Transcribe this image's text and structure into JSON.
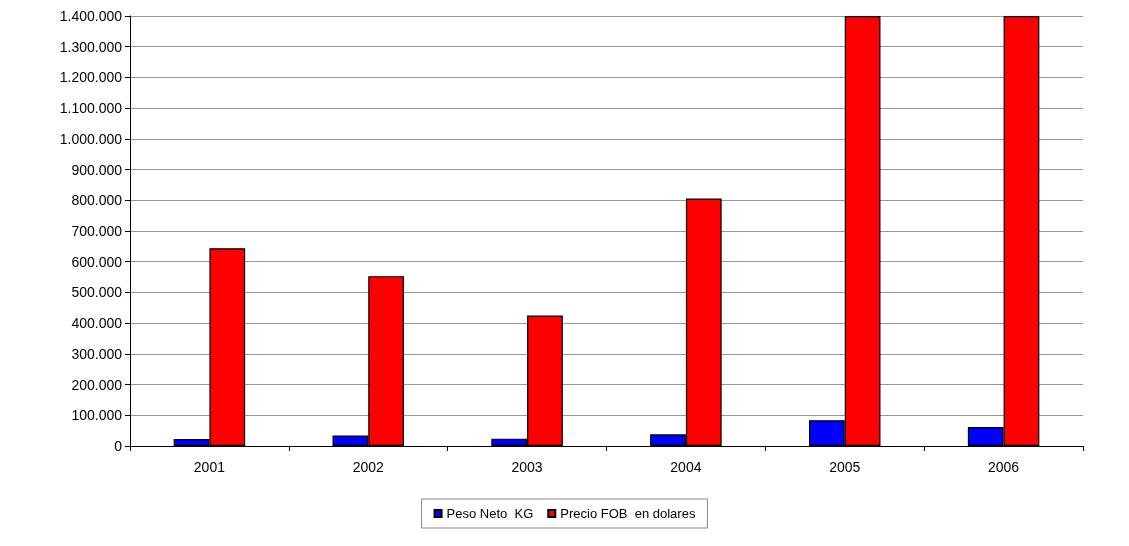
{
  "chart_data": {
    "type": "bar",
    "categories": [
      "2001",
      "2002",
      "2003",
      "2004",
      "2005",
      "2006"
    ],
    "series": [
      {
        "name": "Peso Neto  KG",
        "color": "#0000ff",
        "values": [
          23000,
          34000,
          24000,
          38000,
          84000,
          62000
        ]
      },
      {
        "name": "Precio FOB  en dolares",
        "color": "#ff0000",
        "values": [
          644000,
          553000,
          425000,
          806000,
          1400000,
          1400000
        ]
      }
    ],
    "ylim": [
      0,
      1400000
    ],
    "yticks": [
      {
        "value": 0,
        "label": "0"
      },
      {
        "value": 100000,
        "label": "100.000"
      },
      {
        "value": 200000,
        "label": "200.000"
      },
      {
        "value": 300000,
        "label": "300.000"
      },
      {
        "value": 400000,
        "label": "400.000"
      },
      {
        "value": 500000,
        "label": "500.000"
      },
      {
        "value": 600000,
        "label": "600.000"
      },
      {
        "value": 700000,
        "label": "700.000"
      },
      {
        "value": 800000,
        "label": "800.000"
      },
      {
        "value": 900000,
        "label": "900.000"
      },
      {
        "value": 1000000,
        "label": "1.000.000"
      },
      {
        "value": 1100000,
        "label": "1.100.000"
      },
      {
        "value": 1200000,
        "label": "1.200.000"
      },
      {
        "value": 1300000,
        "label": "1.300.000"
      },
      {
        "value": 1400000,
        "label": "1.400.000"
      }
    ],
    "grid": "y",
    "legend": "bottom"
  }
}
